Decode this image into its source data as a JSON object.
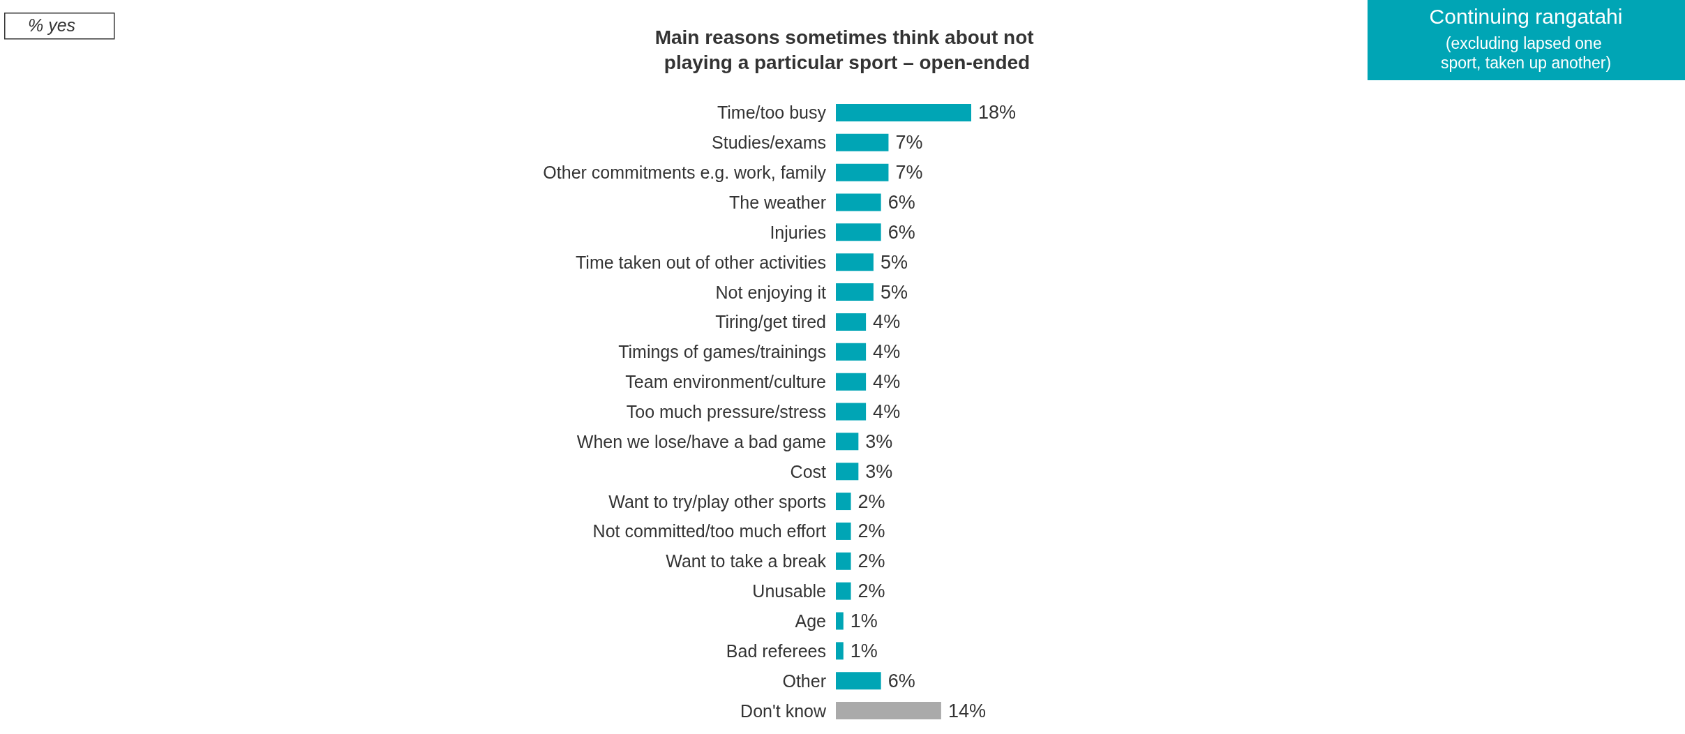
{
  "chart_data": {
    "type": "bar",
    "orientation": "horizontal",
    "title": "Main reasons sometimes think about not playing a particular sport – open-ended",
    "categories": [
      "Time/too busy",
      "Studies/exams",
      "Other commitments e.g. work, family",
      "The weather",
      "Injuries",
      "Time taken out of other activities",
      "Not enjoying it",
      "Tiring/get tired",
      "Timings of games/trainings",
      "Team environment/culture",
      "Too much pressure/stress",
      "When we lose/have a bad game",
      "Cost",
      "Want to try/play other sports",
      "Not committed/too much effort",
      "Want to take a break",
      "Unusable",
      "Age",
      "Bad referees",
      "Other",
      "Don't know"
    ],
    "values": [
      18,
      7,
      7,
      6,
      6,
      5,
      5,
      4,
      4,
      4,
      4,
      3,
      3,
      2,
      2,
      2,
      2,
      1,
      1,
      6,
      14
    ],
    "value_labels": [
      "18%",
      "7%",
      "7%",
      "6%",
      "6%",
      "5%",
      "5%",
      "4%",
      "4%",
      "4%",
      "4%",
      "3%",
      "3%",
      "2%",
      "2%",
      "2%",
      "2%",
      "1%",
      "1%",
      "6%",
      "14%"
    ],
    "colors": [
      "#00a5b5",
      "#00a5b5",
      "#00a5b5",
      "#00a5b5",
      "#00a5b5",
      "#00a5b5",
      "#00a5b5",
      "#00a5b5",
      "#00a5b5",
      "#00a5b5",
      "#00a5b5",
      "#00a5b5",
      "#00a5b5",
      "#00a5b5",
      "#00a5b5",
      "#00a5b5",
      "#00a5b5",
      "#00a5b5",
      "#00a5b5",
      "#00a5b5",
      "#aaaaaa"
    ],
    "annotations": [
      "% yes",
      "Continuing rangatahi",
      "(excluding lapsed one sport, taken up another)"
    ]
  }
}
